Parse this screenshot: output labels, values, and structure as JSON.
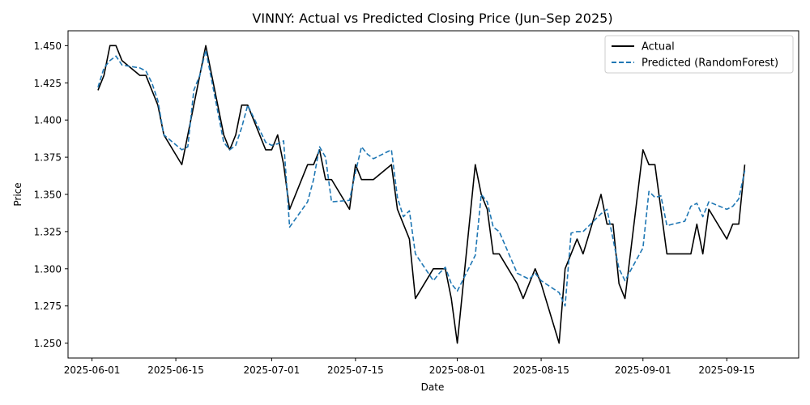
{
  "chart_data": {
    "type": "line",
    "title": "VINNY: Actual vs Predicted Closing Price (Jun–Sep 2025)",
    "xlabel": "Date",
    "ylabel": "Price",
    "xlim": [
      "2025-05-28",
      "2025-09-27"
    ],
    "ylim": [
      1.24,
      1.46
    ],
    "x_ticks": [
      "2025-06-01",
      "2025-06-15",
      "2025-07-01",
      "2025-07-15",
      "2025-08-01",
      "2025-08-15",
      "2025-09-01",
      "2025-09-15"
    ],
    "y_ticks": [
      1.25,
      1.275,
      1.3,
      1.325,
      1.35,
      1.375,
      1.4,
      1.425,
      1.45
    ],
    "y_tick_labels": [
      "1.250",
      "1.275",
      "1.300",
      "1.325",
      "1.350",
      "1.375",
      "1.400",
      "1.425",
      "1.450"
    ],
    "legend_position": "upper right",
    "grid": false,
    "series": [
      {
        "name": "Actual",
        "color": "#000000",
        "style": "solid",
        "x": [
          "2025-06-02",
          "2025-06-03",
          "2025-06-04",
          "2025-06-05",
          "2025-06-06",
          "2025-06-09",
          "2025-06-10",
          "2025-06-11",
          "2025-06-12",
          "2025-06-13",
          "2025-06-16",
          "2025-06-17",
          "2025-06-18",
          "2025-06-19",
          "2025-06-20",
          "2025-06-23",
          "2025-06-24",
          "2025-06-25",
          "2025-06-26",
          "2025-06-27",
          "2025-06-30",
          "2025-07-01",
          "2025-07-02",
          "2025-07-03",
          "2025-07-04",
          "2025-07-07",
          "2025-07-08",
          "2025-07-09",
          "2025-07-10",
          "2025-07-11",
          "2025-07-14",
          "2025-07-15",
          "2025-07-16",
          "2025-07-17",
          "2025-07-18",
          "2025-07-21",
          "2025-07-22",
          "2025-07-23",
          "2025-07-24",
          "2025-07-25",
          "2025-07-28",
          "2025-07-29",
          "2025-07-30",
          "2025-07-31",
          "2025-08-01",
          "2025-08-04",
          "2025-08-05",
          "2025-08-06",
          "2025-08-07",
          "2025-08-08",
          "2025-08-11",
          "2025-08-12",
          "2025-08-13",
          "2025-08-14",
          "2025-08-15",
          "2025-08-18",
          "2025-08-19",
          "2025-08-20",
          "2025-08-21",
          "2025-08-22",
          "2025-08-25",
          "2025-08-26",
          "2025-08-27",
          "2025-08-28",
          "2025-08-29",
          "2025-09-01",
          "2025-09-02",
          "2025-09-03",
          "2025-09-04",
          "2025-09-05",
          "2025-09-08",
          "2025-09-09",
          "2025-09-10",
          "2025-09-11",
          "2025-09-12",
          "2025-09-15",
          "2025-09-16",
          "2025-09-17",
          "2025-09-18"
        ],
        "values": [
          1.42,
          1.43,
          1.45,
          1.45,
          1.44,
          1.43,
          1.43,
          1.42,
          1.41,
          1.39,
          1.37,
          1.39,
          1.41,
          1.43,
          1.45,
          1.39,
          1.38,
          1.39,
          1.41,
          1.41,
          1.38,
          1.38,
          1.39,
          1.37,
          1.34,
          1.37,
          1.37,
          1.38,
          1.36,
          1.36,
          1.34,
          1.37,
          1.36,
          1.36,
          1.36,
          1.37,
          1.34,
          1.33,
          1.32,
          1.28,
          1.3,
          1.3,
          1.3,
          1.28,
          1.25,
          1.37,
          1.35,
          1.34,
          1.31,
          1.31,
          1.29,
          1.28,
          1.29,
          1.3,
          1.29,
          1.25,
          1.3,
          1.31,
          1.32,
          1.31,
          1.35,
          1.33,
          1.33,
          1.29,
          1.28,
          1.38,
          1.37,
          1.37,
          1.34,
          1.31,
          1.31,
          1.31,
          1.33,
          1.31,
          1.34,
          1.32,
          1.33,
          1.33,
          1.37
        ]
      },
      {
        "name": "Predicted (RandomForest)",
        "color": "#1f77b4",
        "style": "dashed",
        "x": [
          "2025-06-02",
          "2025-06-03",
          "2025-06-04",
          "2025-06-05",
          "2025-06-06",
          "2025-06-09",
          "2025-06-10",
          "2025-06-11",
          "2025-06-12",
          "2025-06-13",
          "2025-06-16",
          "2025-06-17",
          "2025-06-18",
          "2025-06-19",
          "2025-06-20",
          "2025-06-23",
          "2025-06-24",
          "2025-06-25",
          "2025-06-26",
          "2025-06-27",
          "2025-06-30",
          "2025-07-01",
          "2025-07-02",
          "2025-07-03",
          "2025-07-04",
          "2025-07-07",
          "2025-07-08",
          "2025-07-09",
          "2025-07-10",
          "2025-07-11",
          "2025-07-14",
          "2025-07-15",
          "2025-07-16",
          "2025-07-17",
          "2025-07-18",
          "2025-07-21",
          "2025-07-22",
          "2025-07-23",
          "2025-07-24",
          "2025-07-25",
          "2025-07-28",
          "2025-07-29",
          "2025-07-30",
          "2025-07-31",
          "2025-08-01",
          "2025-08-04",
          "2025-08-05",
          "2025-08-06",
          "2025-08-07",
          "2025-08-08",
          "2025-08-11",
          "2025-08-12",
          "2025-08-13",
          "2025-08-14",
          "2025-08-15",
          "2025-08-18",
          "2025-08-19",
          "2025-08-20",
          "2025-08-21",
          "2025-08-22",
          "2025-08-25",
          "2025-08-26",
          "2025-08-27",
          "2025-08-28",
          "2025-08-29",
          "2025-09-01",
          "2025-09-02",
          "2025-09-03",
          "2025-09-04",
          "2025-09-05",
          "2025-09-08",
          "2025-09-09",
          "2025-09-10",
          "2025-09-11",
          "2025-09-12",
          "2025-09-15",
          "2025-09-16",
          "2025-09-17",
          "2025-09-18"
        ],
        "values": [
          1.422,
          1.435,
          1.44,
          1.443,
          1.437,
          1.435,
          1.433,
          1.425,
          1.413,
          1.39,
          1.38,
          1.382,
          1.42,
          1.43,
          1.447,
          1.385,
          1.38,
          1.383,
          1.395,
          1.41,
          1.385,
          1.383,
          1.384,
          1.386,
          1.328,
          1.345,
          1.36,
          1.382,
          1.375,
          1.345,
          1.346,
          1.365,
          1.382,
          1.377,
          1.374,
          1.38,
          1.348,
          1.335,
          1.339,
          1.31,
          1.292,
          1.297,
          1.301,
          1.29,
          1.285,
          1.309,
          1.35,
          1.345,
          1.328,
          1.325,
          1.297,
          1.295,
          1.293,
          1.297,
          1.292,
          1.284,
          1.275,
          1.324,
          1.325,
          1.325,
          1.337,
          1.34,
          1.32,
          1.3,
          1.292,
          1.314,
          1.352,
          1.348,
          1.349,
          1.329,
          1.332,
          1.342,
          1.344,
          1.335,
          1.345,
          1.34,
          1.342,
          1.347,
          1.366
        ]
      }
    ]
  }
}
